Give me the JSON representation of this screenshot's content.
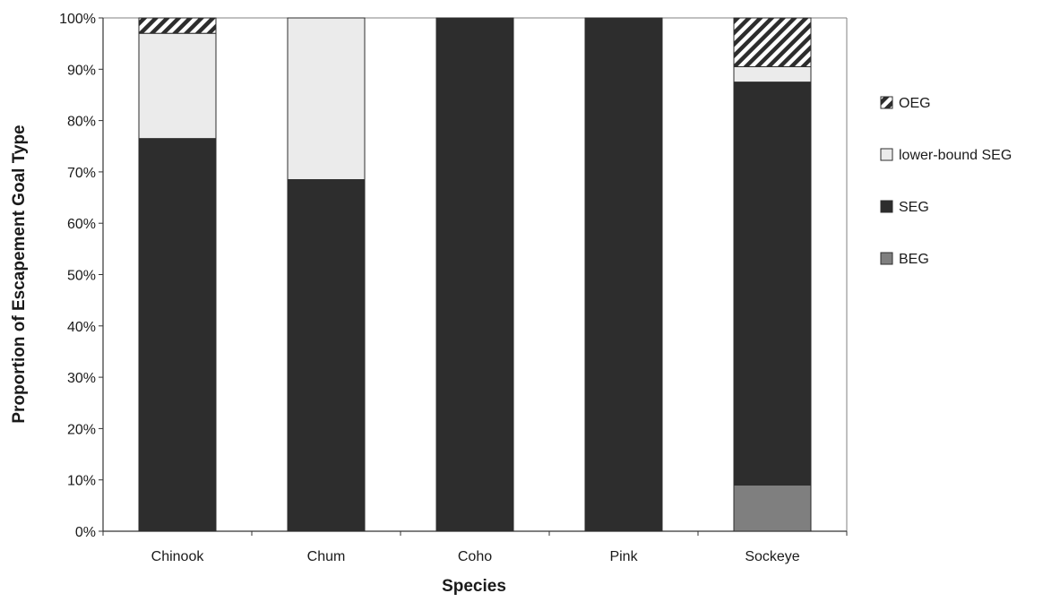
{
  "chart_data": {
    "type": "bar",
    "stacked": true,
    "title": "",
    "xlabel": "Species",
    "ylabel": "Proportion of Escapement Goal Type",
    "categories": [
      "Chinook",
      "Chum",
      "Coho",
      "Pink",
      "Sockeye"
    ],
    "ylim": [
      0,
      100
    ],
    "yticks": [
      "0%",
      "10%",
      "20%",
      "30%",
      "40%",
      "50%",
      "60%",
      "70%",
      "80%",
      "90%",
      "100%"
    ],
    "series": [
      {
        "name": "BEG",
        "color": "#7f7f7f",
        "pattern": "solid",
        "values": [
          0,
          0,
          0,
          0,
          9
        ]
      },
      {
        "name": "SEG",
        "color": "#2d2d2d",
        "pattern": "solid",
        "values": [
          76.5,
          68.5,
          100,
          100,
          78.5
        ]
      },
      {
        "name": "lower-bound SEG",
        "color": "#ebebeb",
        "pattern": "solid",
        "values": [
          20.5,
          31.5,
          0,
          0,
          3
        ]
      },
      {
        "name": "OEG",
        "color": "#2d2d2d",
        "pattern": "diagonal-hatch",
        "values": [
          3,
          0,
          0,
          0,
          9.5
        ]
      }
    ],
    "legend_order": [
      "OEG",
      "lower-bound SEG",
      "SEG",
      "BEG"
    ],
    "legend_position": "right",
    "grid": false
  }
}
